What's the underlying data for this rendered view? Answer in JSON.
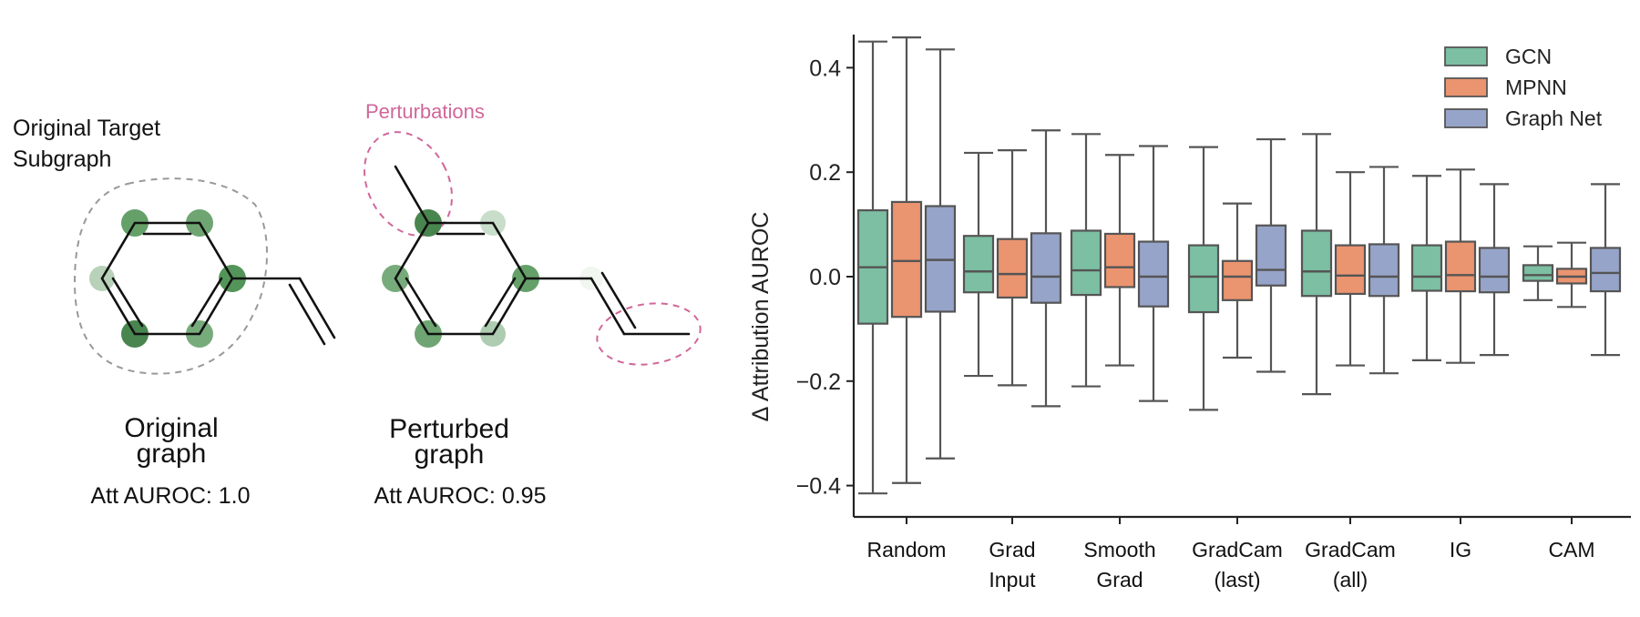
{
  "left_panel": {
    "target_label_line1": "Original Target",
    "target_label_line2": "Subgraph",
    "perturbations_label": "Perturbations",
    "original_caption_line1": "Original",
    "original_caption_line2": "graph",
    "original_score": "Att AUROC: 1.0",
    "perturbed_caption_line1": "Perturbed",
    "perturbed_caption_line2": "graph",
    "perturbed_score": "Att AUROC: 0.95",
    "highlight_color": "#4a8f4f",
    "perturbation_color": "#d0679a"
  },
  "chart_data": {
    "type": "box",
    "ylabel": "Δ Attribution AUROC",
    "ylim": [
      -0.46,
      0.46
    ],
    "yticks": [
      -0.4,
      -0.2,
      0.0,
      0.2,
      0.4
    ],
    "ytick_labels": [
      "−0.4",
      "−0.2",
      "0.0",
      "0.2",
      "0.4"
    ],
    "legend_position": "top-right",
    "categories": [
      {
        "line1": "Random",
        "line2": ""
      },
      {
        "line1": "Grad",
        "line2": "Input"
      },
      {
        "line1": "Smooth",
        "line2": "Grad"
      },
      {
        "line1": "GradCam",
        "line2": "(last)"
      },
      {
        "line1": "GradCam",
        "line2": "(all)"
      },
      {
        "line1": "IG",
        "line2": ""
      },
      {
        "line1": "CAM",
        "line2": ""
      }
    ],
    "series": [
      {
        "name": "GCN",
        "color": "#7cbfa3",
        "boxes": [
          {
            "whislo": -0.415,
            "q1": -0.09,
            "med": 0.018,
            "q3": 0.127,
            "whishi": 0.45
          },
          {
            "whislo": -0.19,
            "q1": -0.03,
            "med": 0.01,
            "q3": 0.078,
            "whishi": 0.237
          },
          {
            "whislo": -0.21,
            "q1": -0.035,
            "med": 0.012,
            "q3": 0.088,
            "whishi": 0.273
          },
          {
            "whislo": -0.255,
            "q1": -0.068,
            "med": 0.0,
            "q3": 0.06,
            "whishi": 0.248
          },
          {
            "whislo": -0.225,
            "q1": -0.037,
            "med": 0.01,
            "q3": 0.088,
            "whishi": 0.273
          },
          {
            "whislo": -0.16,
            "q1": -0.027,
            "med": 0.0,
            "q3": 0.06,
            "whishi": 0.193
          },
          {
            "whislo": -0.045,
            "q1": -0.008,
            "med": 0.003,
            "q3": 0.022,
            "whishi": 0.058
          }
        ]
      },
      {
        "name": "MPNN",
        "color": "#eb9470",
        "boxes": [
          {
            "whislo": -0.395,
            "q1": -0.077,
            "med": 0.03,
            "q3": 0.143,
            "whishi": 0.458
          },
          {
            "whislo": -0.208,
            "q1": -0.04,
            "med": 0.005,
            "q3": 0.072,
            "whishi": 0.242
          },
          {
            "whislo": -0.17,
            "q1": -0.02,
            "med": 0.018,
            "q3": 0.082,
            "whishi": 0.233
          },
          {
            "whislo": -0.155,
            "q1": -0.045,
            "med": 0.0,
            "q3": 0.03,
            "whishi": 0.14
          },
          {
            "whislo": -0.17,
            "q1": -0.033,
            "med": 0.002,
            "q3": 0.06,
            "whishi": 0.2
          },
          {
            "whislo": -0.165,
            "q1": -0.028,
            "med": 0.003,
            "q3": 0.067,
            "whishi": 0.205
          },
          {
            "whislo": -0.058,
            "q1": -0.013,
            "med": 0.0,
            "q3": 0.015,
            "whishi": 0.065
          }
        ]
      },
      {
        "name": "Graph Net",
        "color": "#97a4c9",
        "boxes": [
          {
            "whislo": -0.348,
            "q1": -0.067,
            "med": 0.032,
            "q3": 0.135,
            "whishi": 0.435
          },
          {
            "whislo": -0.248,
            "q1": -0.05,
            "med": 0.0,
            "q3": 0.083,
            "whishi": 0.28
          },
          {
            "whislo": -0.238,
            "q1": -0.057,
            "med": 0.0,
            "q3": 0.067,
            "whishi": 0.25
          },
          {
            "whislo": -0.182,
            "q1": -0.017,
            "med": 0.013,
            "q3": 0.098,
            "whishi": 0.263
          },
          {
            "whislo": -0.185,
            "q1": -0.037,
            "med": 0.0,
            "q3": 0.062,
            "whishi": 0.21
          },
          {
            "whislo": -0.15,
            "q1": -0.03,
            "med": 0.0,
            "q3": 0.055,
            "whishi": 0.177
          },
          {
            "whislo": -0.15,
            "q1": -0.028,
            "med": 0.007,
            "q3": 0.055,
            "whishi": 0.177
          }
        ]
      }
    ]
  }
}
